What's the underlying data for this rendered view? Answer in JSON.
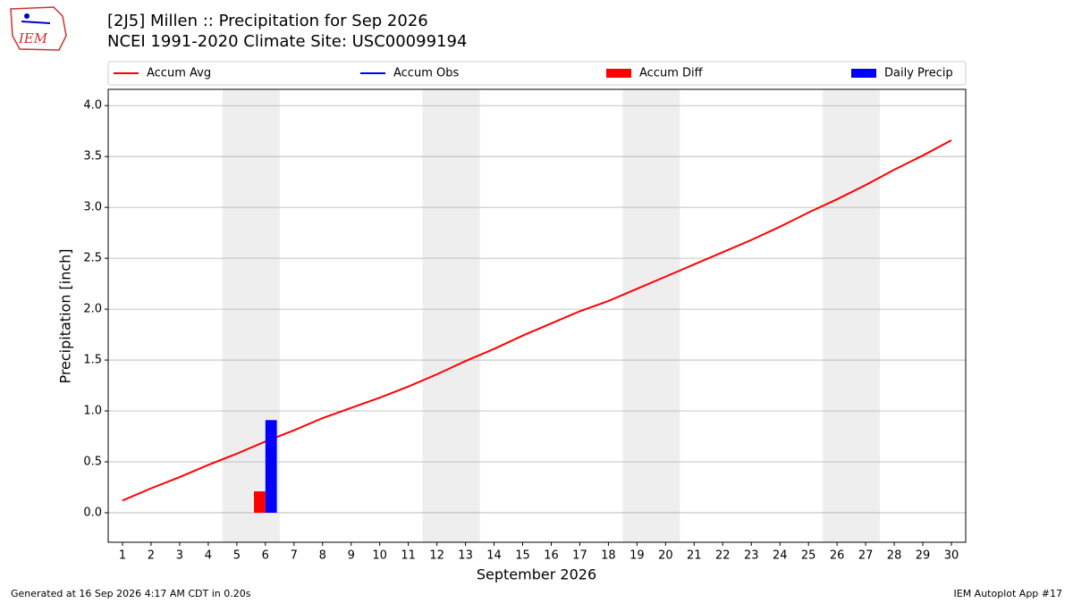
{
  "chart_data": {
    "type": "line",
    "title": "[2J5] Millen :: Precipitation for Sep 2026",
    "subtitle": "NCEI 1991-2020 Climate Site: USC00099194",
    "logo_text": "IEM",
    "x_label": "September 2026",
    "y_label": "Precipitation [inch]",
    "footer_left": "Generated at 16 Sep 2026 4:17 AM CDT in 0.20s",
    "footer_right": "IEM Autoplot App #17",
    "xlim": [
      0.5,
      30.5
    ],
    "xticks": [
      1,
      2,
      3,
      4,
      5,
      6,
      7,
      8,
      9,
      10,
      11,
      12,
      13,
      14,
      15,
      16,
      17,
      18,
      19,
      20,
      21,
      22,
      23,
      24,
      25,
      26,
      27,
      28,
      29,
      30
    ],
    "ylim": [
      -0.29,
      4.16
    ],
    "yticks": [
      {
        "value": 0,
        "label": "0.0"
      },
      0.5,
      {
        "value": 1,
        "label": "1.0"
      },
      1.5,
      {
        "value": 2,
        "label": "2.0"
      },
      2.5,
      {
        "value": 3,
        "label": "3.0"
      },
      3.5,
      {
        "value": 4,
        "label": "4.0"
      }
    ],
    "grid": true,
    "shaded_ranges": [
      [
        4.5,
        6.5
      ],
      [
        11.5,
        13.5
      ],
      [
        18.5,
        20.5
      ],
      [
        25.5,
        27.5
      ]
    ],
    "shade_color": "#eeeeee",
    "bar_width": 0.4,
    "series": [
      {
        "name": "Accum Avg",
        "color": "#ff0000",
        "kind": "line",
        "x": [
          1,
          2,
          3,
          4,
          5,
          6,
          7,
          8,
          9,
          10,
          11,
          12,
          13,
          14,
          15,
          16,
          17,
          18,
          19,
          20,
          21,
          22,
          23,
          24,
          25,
          26,
          27,
          28,
          29,
          30
        ],
        "values": [
          0.12,
          0.24,
          0.35,
          0.47,
          0.58,
          0.7,
          0.81,
          0.93,
          1.03,
          1.13,
          1.24,
          1.36,
          1.49,
          1.61,
          1.74,
          1.86,
          1.98,
          2.08,
          2.2,
          2.32,
          2.44,
          2.56,
          2.68,
          2.81,
          2.95,
          3.08,
          3.22,
          3.37,
          3.51,
          3.66
        ]
      },
      {
        "name": "Accum Obs",
        "color": "#0000ff",
        "kind": "line",
        "x": [],
        "values": []
      },
      {
        "name": "Accum Diff",
        "color": "#ff0000",
        "kind": "bar",
        "offset": -0.2,
        "x": [
          6
        ],
        "values": [
          0.21
        ]
      },
      {
        "name": "Daily Precip",
        "color": "#0000ff",
        "kind": "bar",
        "offset": 0.2,
        "x": [
          6
        ],
        "values": [
          0.91
        ]
      }
    ]
  }
}
